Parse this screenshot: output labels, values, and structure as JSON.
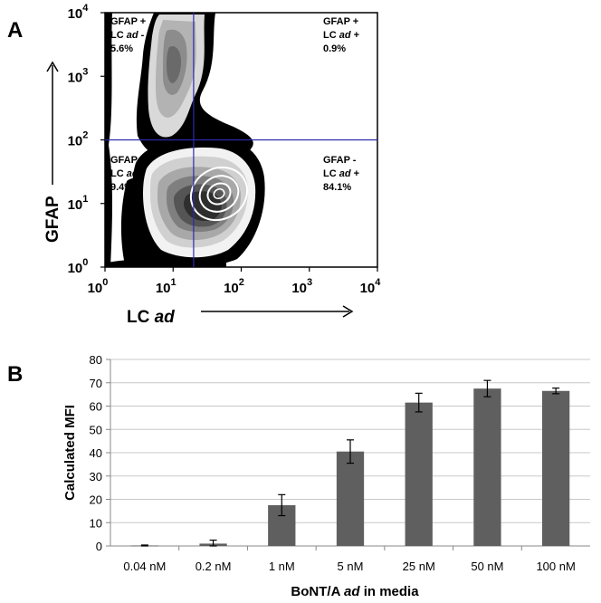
{
  "panels": {
    "a_label": "A",
    "b_label": "B"
  },
  "chart_data": [
    {
      "type": "density",
      "xlabel": "LC",
      "xlabel_italic": "ad",
      "ylabel": "GFAP",
      "x_ticks": [
        "10",
        "10",
        "10",
        "10",
        "10"
      ],
      "x_tick_exp": [
        "0",
        "1",
        "2",
        "3",
        "4"
      ],
      "y_ticks": [
        "10",
        "10",
        "10",
        "10",
        "10"
      ],
      "y_tick_exp": [
        "0",
        "1",
        "2",
        "3",
        "4"
      ],
      "xlim": [
        1,
        10000
      ],
      "ylim": [
        1,
        10000
      ],
      "scale": "log",
      "gate": {
        "x": 20,
        "y": 100,
        "color": "#2a2ab0"
      },
      "quadrants": [
        {
          "line1": "GFAP +",
          "line2a": "LC ",
          "line2i": "ad",
          "line2b": " -",
          "pct": "5.6%"
        },
        {
          "line1": "GFAP +",
          "line2a": "LC ",
          "line2i": "ad",
          "line2b": " +",
          "pct": "0.9%"
        },
        {
          "line1": "GFAP -",
          "line2a": "LC ",
          "line2i": "ad",
          "line2b": " -",
          "pct": "9.4%"
        },
        {
          "line1": "GFAP -",
          "line2a": "LC ",
          "line2i": "ad",
          "line2b": " +",
          "pct": "84.1%"
        }
      ]
    },
    {
      "type": "bar",
      "categories": [
        "0.04 nM",
        "0.2 nM",
        "1 nM",
        "5 nM",
        "25 nM",
        "50 nM",
        "100 nM"
      ],
      "values": [
        0.2,
        1.0,
        17.5,
        40.5,
        61.5,
        67.5,
        66.5
      ],
      "errors": [
        0.2,
        1.5,
        4.5,
        5.0,
        4.0,
        3.5,
        1.2
      ],
      "ylabel": "Calculated MFI",
      "xlabel_a": "BoNT/A ",
      "xlabel_i": "ad",
      "xlabel_b": " in media",
      "ylim": [
        0,
        80
      ],
      "y_ticks": [
        "0",
        "10",
        "20",
        "30",
        "40",
        "50",
        "60",
        "70",
        "80"
      ],
      "bar_color": "#5f5f5f",
      "grid": true
    }
  ]
}
